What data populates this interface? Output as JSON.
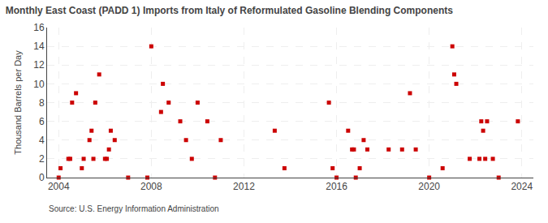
{
  "chart_data": {
    "type": "scatter",
    "title": "Monthly East Coast (PADD 1) Imports from Italy of Reformulated Gasoline Blending Components",
    "y_label": "Thousand Barrels per Day",
    "annotations": [
      "Source: U.S. Energy Information Administration"
    ],
    "marker": "square",
    "color": "#cc0000",
    "grid": true,
    "xlim": [
      2003.5,
      2024.5
    ],
    "xticks": [
      2004,
      2008,
      2012,
      2016,
      2020,
      2024
    ],
    "ylim": [
      0,
      16
    ],
    "yticks": [
      0,
      2,
      4,
      6,
      8,
      10,
      12,
      14,
      16
    ],
    "x": [
      2004.0,
      2004.08,
      2004.42,
      2004.5,
      2004.58,
      2004.75,
      2005.0,
      2005.08,
      2005.33,
      2005.42,
      2005.5,
      2005.58,
      2005.75,
      2006.0,
      2006.08,
      2006.17,
      2006.25,
      2006.42,
      2007.0,
      2007.83,
      2008.0,
      2008.42,
      2008.5,
      2008.75,
      2009.25,
      2009.5,
      2009.75,
      2010.0,
      2010.42,
      2010.75,
      2011.0,
      2013.33,
      2013.75,
      2015.67,
      2015.83,
      2016.0,
      2016.5,
      2016.67,
      2016.75,
      2016.83,
      2017.0,
      2017.17,
      2017.33,
      2018.25,
      2018.83,
      2019.17,
      2019.42,
      2020.0,
      2020.58,
      2021.0,
      2021.08,
      2021.17,
      2021.75,
      2022.17,
      2022.25,
      2022.33,
      2022.42,
      2022.5,
      2022.75,
      2023.0,
      2023.83
    ],
    "values": [
      0,
      1,
      2,
      2,
      8,
      9,
      1,
      2,
      4,
      5,
      2,
      8,
      11,
      2,
      2,
      3,
      5,
      4,
      0,
      0,
      14,
      7,
      10,
      8,
      6,
      4,
      2,
      8,
      6,
      0,
      4,
      5,
      1,
      8,
      1,
      0,
      5,
      3,
      3,
      0,
      1,
      4,
      3,
      3,
      3,
      9,
      3,
      0,
      1,
      14,
      11,
      10,
      2,
      2,
      6,
      5,
      2,
      6,
      2,
      0,
      6
    ]
  }
}
